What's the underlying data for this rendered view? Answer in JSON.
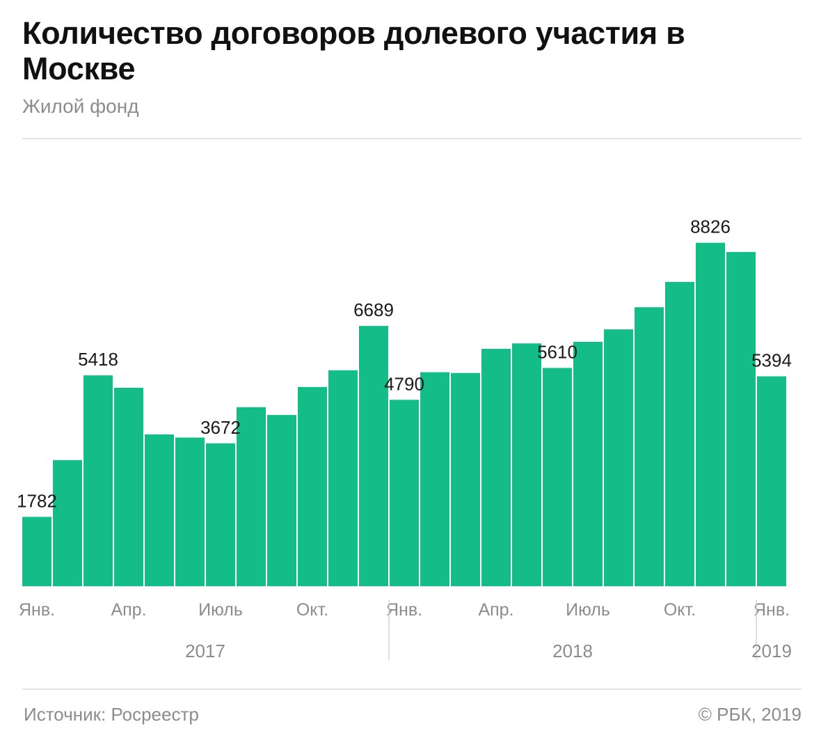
{
  "title": "Количество договоров долевого участия в Москве",
  "subtitle": "Жилой фонд",
  "footer": {
    "source": "Источник: Росреестр",
    "copyright": "© РБК, 2019"
  },
  "colors": {
    "bar": "#14bc88",
    "label": "#1a1a1a",
    "axis_text": "#8c8c8c",
    "divider": "#d4d4d4"
  },
  "chart_data": {
    "type": "bar",
    "categories": [
      "2017-01",
      "2017-02",
      "2017-03",
      "2017-04",
      "2017-05",
      "2017-06",
      "2017-07",
      "2017-08",
      "2017-09",
      "2017-10",
      "2017-11",
      "2017-12",
      "2018-01",
      "2018-02",
      "2018-03",
      "2018-04",
      "2018-05",
      "2018-06",
      "2018-07",
      "2018-08",
      "2018-09",
      "2018-10",
      "2018-11",
      "2018-12",
      "2019-01"
    ],
    "values": [
      1782,
      3240,
      5418,
      5100,
      3900,
      3820,
      3672,
      4600,
      4400,
      5120,
      5550,
      6689,
      4790,
      5500,
      5480,
      6100,
      6240,
      5610,
      6280,
      6600,
      7170,
      7820,
      8826,
      8590,
      5394
    ],
    "data_labels": [
      {
        "index": 0,
        "text": "1782"
      },
      {
        "index": 2,
        "text": "5418"
      },
      {
        "index": 6,
        "text": "3672"
      },
      {
        "index": 11,
        "text": "6689"
      },
      {
        "index": 12,
        "text": "4790"
      },
      {
        "index": 17,
        "text": "5610"
      },
      {
        "index": 22,
        "text": "8826"
      },
      {
        "index": 24,
        "text": "5394"
      }
    ],
    "x_tick_labels": [
      {
        "index": 0,
        "text": "Янв."
      },
      {
        "index": 3,
        "text": "Апр."
      },
      {
        "index": 6,
        "text": "Июль"
      },
      {
        "index": 9,
        "text": "Окт."
      },
      {
        "index": 12,
        "text": "Янв."
      },
      {
        "index": 15,
        "text": "Апр."
      },
      {
        "index": 18,
        "text": "Июль"
      },
      {
        "index": 21,
        "text": "Окт."
      },
      {
        "index": 24,
        "text": "Янв."
      }
    ],
    "year_groups": [
      {
        "label": "2017",
        "start": 0,
        "end": 11
      },
      {
        "label": "2018",
        "start": 12,
        "end": 23
      },
      {
        "label": "2019",
        "start": 24,
        "end": 24
      }
    ],
    "ylim": [
      0,
      10520
    ],
    "grid": false,
    "legend": "none"
  }
}
